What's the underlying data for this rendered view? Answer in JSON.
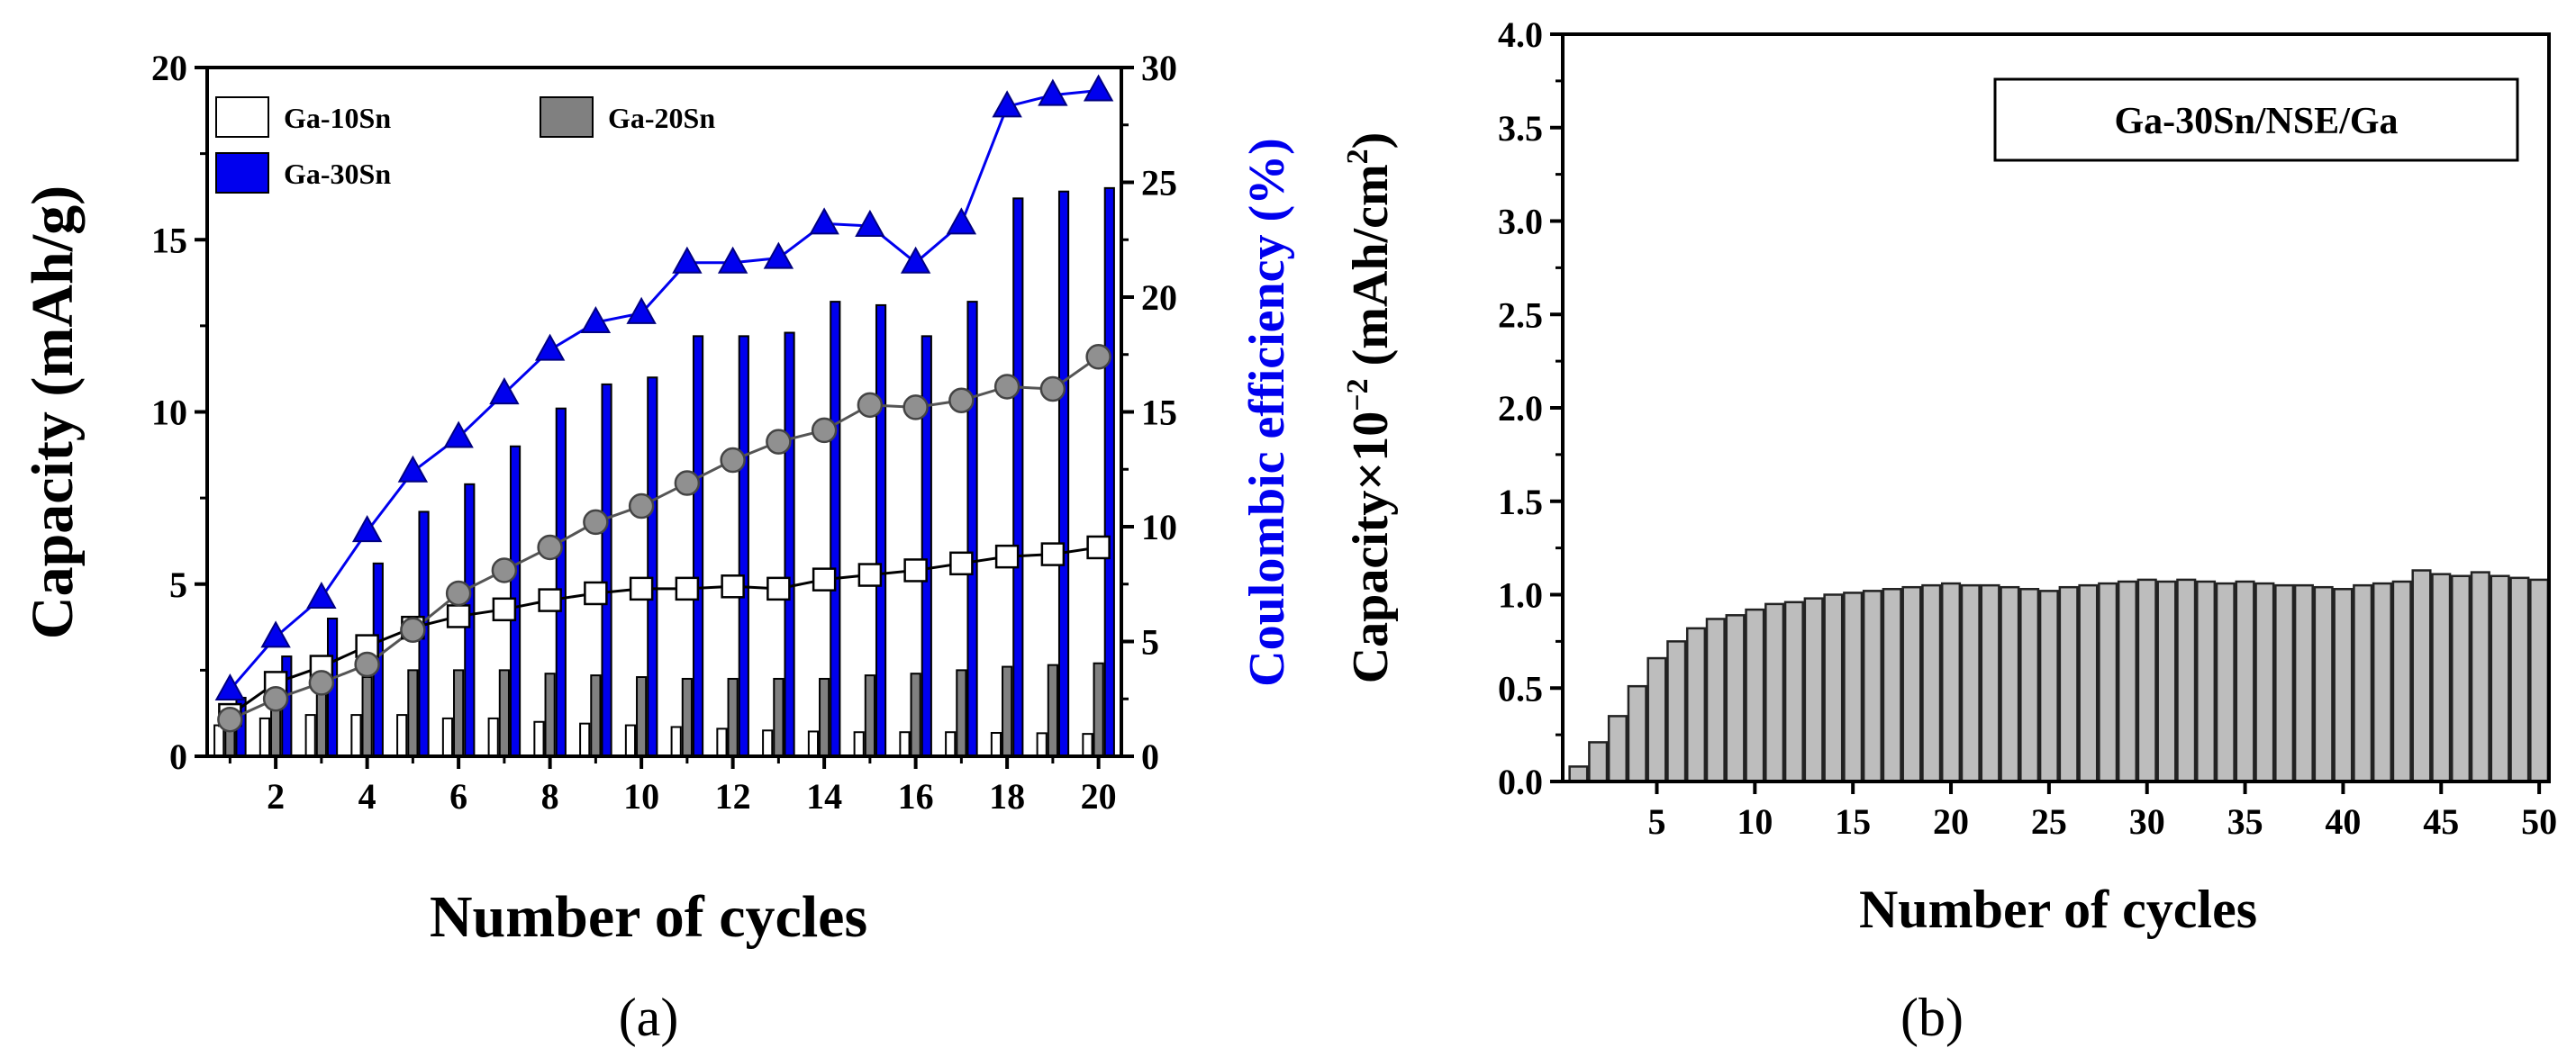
{
  "chart_data": [
    {
      "type": "bar",
      "panel_label": "(a)",
      "categories": [
        1,
        2,
        3,
        4,
        5,
        6,
        7,
        8,
        9,
        10,
        11,
        12,
        13,
        14,
        15,
        16,
        17,
        18,
        19,
        20
      ],
      "series": [
        {
          "name": "Ga-10Sn",
          "kind": "bar",
          "axis": "left",
          "color": "#ffffff",
          "values": [
            0.9,
            1.1,
            1.2,
            1.2,
            1.2,
            1.1,
            1.1,
            1.0,
            0.95,
            0.9,
            0.85,
            0.8,
            0.75,
            0.72,
            0.7,
            0.7,
            0.7,
            0.68,
            0.67,
            0.65
          ]
        },
        {
          "name": "Ga-20Sn",
          "kind": "bar",
          "axis": "left",
          "color": "#808080",
          "values": [
            1.3,
            1.6,
            2.0,
            2.3,
            2.5,
            2.5,
            2.5,
            2.4,
            2.35,
            2.3,
            2.25,
            2.25,
            2.25,
            2.25,
            2.35,
            2.4,
            2.5,
            2.6,
            2.65,
            2.7
          ]
        },
        {
          "name": "Ga-30Sn",
          "kind": "bar",
          "axis": "left",
          "color": "#0000ee",
          "values": [
            1.7,
            2.9,
            4.0,
            5.6,
            7.1,
            7.9,
            9.0,
            10.1,
            10.8,
            11.0,
            12.2,
            12.2,
            12.3,
            13.2,
            13.1,
            12.2,
            13.2,
            16.2,
            16.4,
            16.5
          ]
        },
        {
          "name": "Ga-10Sn CE",
          "kind": "line",
          "axis": "right",
          "marker": "square",
          "color": "#000000",
          "values": [
            1.8,
            3.2,
            3.9,
            4.8,
            5.6,
            6.1,
            6.4,
            6.8,
            7.1,
            7.3,
            7.3,
            7.4,
            7.3,
            7.7,
            7.9,
            8.1,
            8.4,
            8.7,
            8.8,
            9.1
          ]
        },
        {
          "name": "Ga-20Sn CE",
          "kind": "line",
          "axis": "right",
          "marker": "circle",
          "color": "#808080",
          "values": [
            1.6,
            2.5,
            3.2,
            4.0,
            5.5,
            7.1,
            8.1,
            9.1,
            10.2,
            10.9,
            11.9,
            12.9,
            13.7,
            14.2,
            15.3,
            15.2,
            15.5,
            16.1,
            16.0,
            17.4
          ]
        },
        {
          "name": "Ga-30Sn CE",
          "kind": "line",
          "axis": "right",
          "marker": "triangle",
          "color": "#0000ee",
          "values": [
            2.9,
            5.2,
            6.9,
            9.8,
            12.4,
            13.9,
            15.8,
            17.7,
            18.9,
            19.3,
            21.5,
            21.5,
            21.7,
            23.2,
            23.1,
            21.5,
            23.2,
            28.3,
            28.8,
            29.0
          ]
        }
      ],
      "xlabel": "Number of cycles",
      "ylabel": "Capacity (mAh/g)",
      "y2label": "Coulombic efficiency (%)",
      "xticks": [
        2,
        4,
        6,
        8,
        10,
        12,
        14,
        16,
        18,
        20
      ],
      "yticks": [
        0,
        5,
        10,
        15,
        20
      ],
      "y2ticks": [
        0,
        5,
        10,
        15,
        20,
        25,
        30
      ],
      "ylim": [
        0,
        20
      ],
      "y2lim": [
        0,
        30
      ],
      "legend": [
        "Ga-10Sn",
        "Ga-20Sn",
        "Ga-30Sn"
      ],
      "legend_position": "top-left"
    },
    {
      "type": "bar",
      "panel_label": "(b)",
      "annotation": "Ga-30Sn/NSE/Ga",
      "x": [
        1,
        2,
        3,
        4,
        5,
        6,
        7,
        8,
        9,
        10,
        11,
        12,
        13,
        14,
        15,
        16,
        17,
        18,
        19,
        20,
        21,
        22,
        23,
        24,
        25,
        26,
        27,
        28,
        29,
        30,
        31,
        32,
        33,
        34,
        35,
        36,
        37,
        38,
        39,
        40,
        41,
        42,
        43,
        44,
        45,
        46,
        47,
        48,
        49,
        50
      ],
      "values": [
        0.08,
        0.21,
        0.35,
        0.51,
        0.66,
        0.75,
        0.82,
        0.87,
        0.89,
        0.92,
        0.95,
        0.96,
        0.98,
        1.0,
        1.01,
        1.02,
        1.03,
        1.04,
        1.05,
        1.06,
        1.05,
        1.05,
        1.04,
        1.03,
        1.02,
        1.04,
        1.05,
        1.06,
        1.07,
        1.08,
        1.07,
        1.08,
        1.07,
        1.06,
        1.07,
        1.06,
        1.05,
        1.05,
        1.04,
        1.03,
        1.05,
        1.06,
        1.07,
        1.13,
        1.11,
        1.1,
        1.12,
        1.1,
        1.09,
        1.08
      ],
      "xlabel": "Number of cycles",
      "ylabel_prefix": "Capacity×10",
      "ylabel_exp": "−2",
      "ylabel_suffix": " (mAh/cm",
      "ylabel_exp2": "2",
      "ylabel_close": ")",
      "xticks": [
        5,
        10,
        15,
        20,
        25,
        30,
        35,
        40,
        45,
        50
      ],
      "yticks": [
        "0.0",
        "0.5",
        "1.0",
        "1.5",
        "2.0",
        "2.5",
        "3.0",
        "3.5",
        "4.0"
      ],
      "ylim": [
        0,
        4.0
      ],
      "bar_color": "#bdbdbd"
    }
  ]
}
